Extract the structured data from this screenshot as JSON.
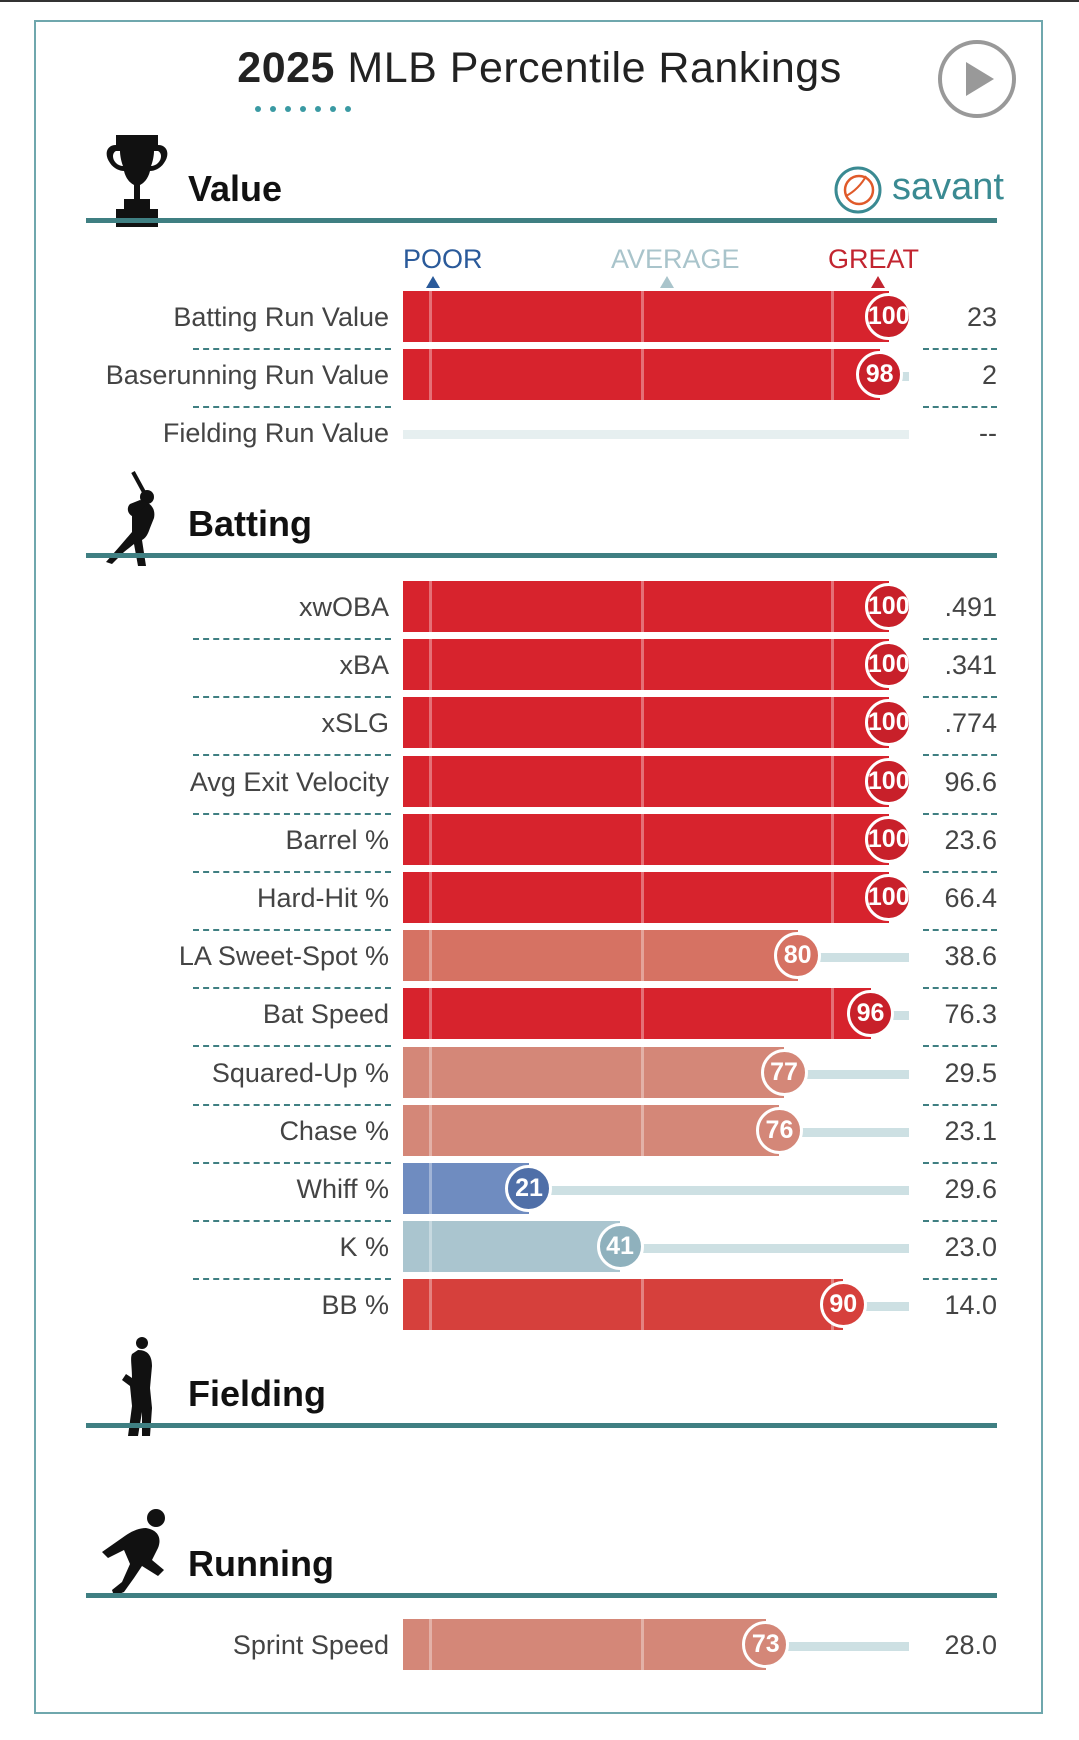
{
  "title": {
    "year": "2025",
    "rest": "MLB Percentile Rankings"
  },
  "brand": {
    "name": "savant"
  },
  "scale_labels": {
    "poor": "POOR",
    "average": "AVERAGE",
    "great": "GREAT"
  },
  "colors": {
    "teal": "#3f7f82",
    "poor_blue": "#2a5a9a",
    "great_red": "#d7232d",
    "track": "#cde0e3"
  },
  "sections": {
    "value": "Value",
    "batting": "Batting",
    "fielding": "Fielding",
    "running": "Running"
  },
  "chart_data": {
    "type": "bar",
    "title": "2025 MLB Percentile Rankings",
    "xlim": [
      0,
      100
    ],
    "groups": [
      {
        "section": "Value",
        "metrics": [
          {
            "name": "Batting Run Value",
            "percentile": 100,
            "value": "23"
          },
          {
            "name": "Baserunning Run Value",
            "percentile": 98,
            "value": "2"
          },
          {
            "name": "Fielding Run Value",
            "percentile": null,
            "value": "--"
          }
        ]
      },
      {
        "section": "Batting",
        "metrics": [
          {
            "name": "xwOBA",
            "percentile": 100,
            "value": ".491"
          },
          {
            "name": "xBA",
            "percentile": 100,
            "value": ".341"
          },
          {
            "name": "xSLG",
            "percentile": 100,
            "value": ".774"
          },
          {
            "name": "Avg Exit Velocity",
            "percentile": 100,
            "value": "96.6"
          },
          {
            "name": "Barrel %",
            "percentile": 100,
            "value": "23.6"
          },
          {
            "name": "Hard-Hit %",
            "percentile": 100,
            "value": "66.4"
          },
          {
            "name": "LA Sweet-Spot %",
            "percentile": 80,
            "value": "38.6"
          },
          {
            "name": "Bat Speed",
            "percentile": 96,
            "value": "76.3"
          },
          {
            "name": "Squared-Up %",
            "percentile": 77,
            "value": "29.5"
          },
          {
            "name": "Chase %",
            "percentile": 76,
            "value": "23.1"
          },
          {
            "name": "Whiff %",
            "percentile": 21,
            "value": "29.6"
          },
          {
            "name": "K %",
            "percentile": 41,
            "value": "23.0"
          },
          {
            "name": "BB %",
            "percentile": 90,
            "value": "14.0"
          }
        ]
      },
      {
        "section": "Fielding",
        "metrics": []
      },
      {
        "section": "Running",
        "metrics": [
          {
            "name": "Sprint Speed",
            "percentile": 73,
            "value": "28.0"
          }
        ]
      }
    ]
  }
}
